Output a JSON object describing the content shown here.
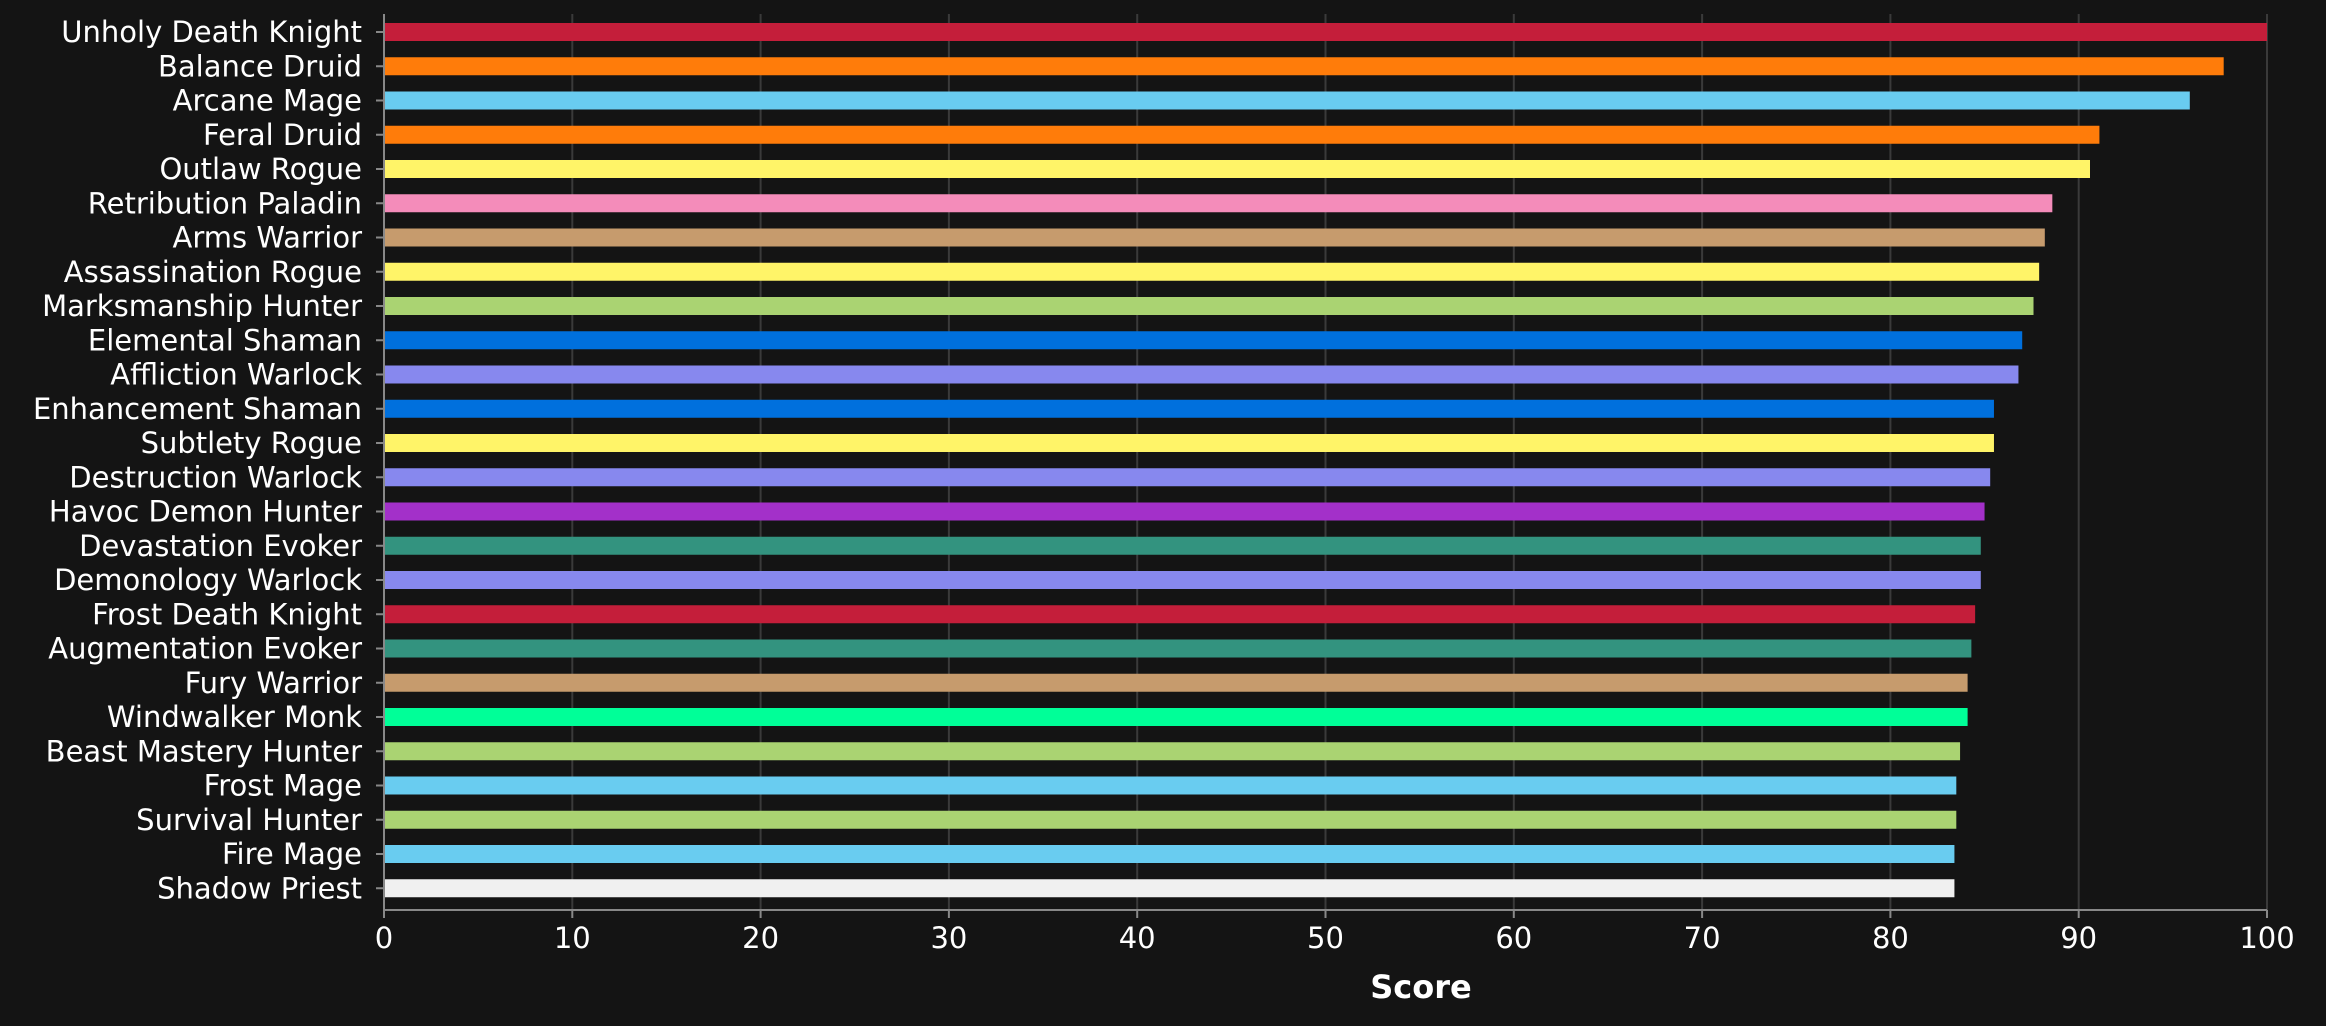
{
  "chart_data": {
    "type": "bar",
    "orientation": "horizontal",
    "title": "",
    "xlabel": "Score",
    "ylabel": "",
    "xlim": [
      0,
      100
    ],
    "x_ticks": [
      "0",
      "10",
      "20",
      "30",
      "40",
      "50",
      "60",
      "70",
      "80",
      "90",
      "100"
    ],
    "grid": true,
    "categories": [
      "Unholy Death Knight",
      "Balance Druid",
      "Arcane Mage",
      "Feral Druid",
      "Outlaw Rogue",
      "Retribution Paladin",
      "Arms Warrior",
      "Assassination Rogue",
      "Marksmanship Hunter",
      "Elemental Shaman",
      "Affliction Warlock",
      "Enhancement Shaman",
      "Subtlety Rogue",
      "Destruction Warlock",
      "Havoc Demon Hunter",
      "Devastation Evoker",
      "Demonology Warlock",
      "Frost Death Knight",
      "Augmentation Evoker",
      "Fury Warrior",
      "Windwalker Monk",
      "Beast Mastery Hunter",
      "Frost Mage",
      "Survival Hunter",
      "Fire Mage",
      "Shadow Priest"
    ],
    "values": [
      100,
      97.7,
      95.9,
      91.1,
      90.6,
      88.6,
      88.2,
      87.9,
      87.6,
      87.0,
      86.8,
      85.5,
      85.5,
      85.3,
      85.0,
      84.8,
      84.8,
      84.5,
      84.3,
      84.1,
      84.1,
      83.7,
      83.5,
      83.5,
      83.4,
      83.4
    ],
    "colors": [
      "#C41E3A",
      "#FF7C0A",
      "#69CCF0",
      "#FF7C0A",
      "#FFF468",
      "#F48CBA",
      "#C69B6D",
      "#FFF468",
      "#AAD372",
      "#0070DD",
      "#8788EE",
      "#0070DD",
      "#FFF468",
      "#8788EE",
      "#A330C9",
      "#33937F",
      "#8788EE",
      "#C41E3A",
      "#33937F",
      "#C69B6D",
      "#00FF98",
      "#AAD372",
      "#69CCF0",
      "#AAD372",
      "#69CCF0",
      "#F0F0F0"
    ],
    "background_color": "#141414",
    "grid_color": "#3a3a3a",
    "axis_color": "#888888",
    "text_color": "#ffffff"
  }
}
